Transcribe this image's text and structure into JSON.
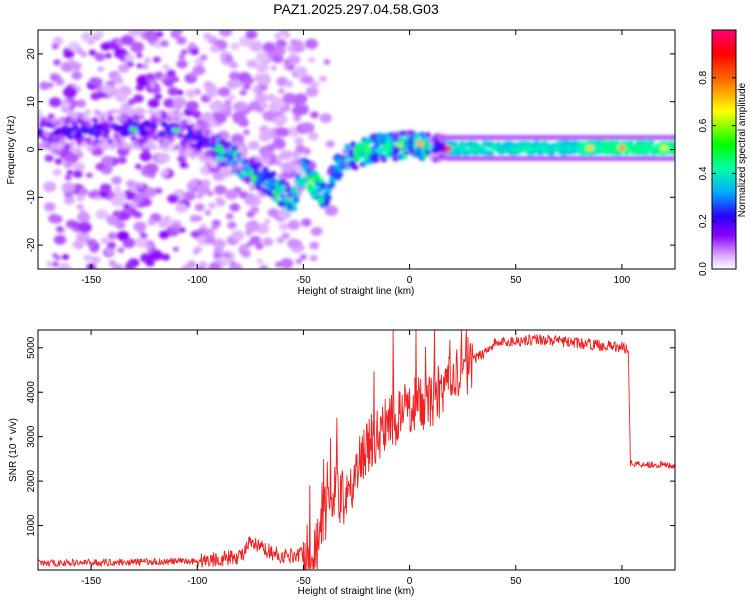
{
  "title": "PAZ1.2025.297.04.58.G03",
  "chart_data": [
    {
      "type": "heatmap",
      "xlabel": "Height of straight line (km)",
      "ylabel": "Frequency (Hz)",
      "xlim": [
        -175,
        125
      ],
      "ylim": [
        -25,
        25
      ],
      "xticks": [
        -150,
        -100,
        -50,
        0,
        50,
        100
      ],
      "yticks": [
        -20,
        -10,
        0,
        10,
        20
      ],
      "colorbar": {
        "label": "Normalized spectral amplitude",
        "range": [
          0,
          1
        ],
        "ticks": [
          0.0,
          0.2,
          0.4,
          0.6,
          0.8
        ],
        "tick_labels": [
          "0.0",
          "0.2",
          "0.4",
          "0.6",
          "0.8"
        ],
        "colormap": [
          "#ffffff",
          "#8800ff",
          "#2a00ff",
          "#00aaff",
          "#00ffaa",
          "#00ff00",
          "#ffff00",
          "#ff7700",
          "#ff0000",
          "#ff0077"
        ]
      },
      "ridge": {
        "height_km": [
          -140,
          -125,
          -110,
          -100,
          -90,
          -80,
          -70,
          -60,
          -55,
          -50,
          -45,
          -40,
          -35,
          -30,
          -25,
          -20,
          -10,
          0,
          10,
          20,
          40,
          60,
          80,
          100,
          125
        ],
        "frequency_hz": [
          4,
          4.5,
          4,
          2.5,
          0,
          -3,
          -6,
          -9,
          -11,
          -4,
          -7,
          -10,
          -4,
          -2,
          -1,
          0,
          0.5,
          1,
          0.5,
          0.2,
          0.2,
          0.2,
          0.3,
          0.3,
          0.3
        ]
      }
    },
    {
      "type": "line",
      "xlabel": "Height of straight line (km)",
      "ylabel": "SNR (10 * v/v)",
      "xlim": [
        -175,
        125
      ],
      "ylim": [
        0,
        5400
      ],
      "xticks": [
        -150,
        -100,
        -50,
        0,
        50,
        100
      ],
      "yticks": [
        1000,
        2000,
        3000,
        4000,
        5000
      ],
      "color": "#ee2222",
      "envelope": {
        "height_km": [
          -175,
          -100,
          -80,
          -75,
          -60,
          -45,
          -40,
          -35,
          -30,
          -25,
          -20,
          -10,
          0,
          10,
          20,
          30,
          40,
          60,
          80,
          103,
          104,
          125
        ],
        "snr": [
          150,
          200,
          300,
          600,
          300,
          400,
          1200,
          1800,
          1500,
          2200,
          2800,
          3300,
          3700,
          3800,
          4300,
          4700,
          5100,
          5200,
          5100,
          5000,
          2400,
          2350
        ]
      }
    }
  ]
}
